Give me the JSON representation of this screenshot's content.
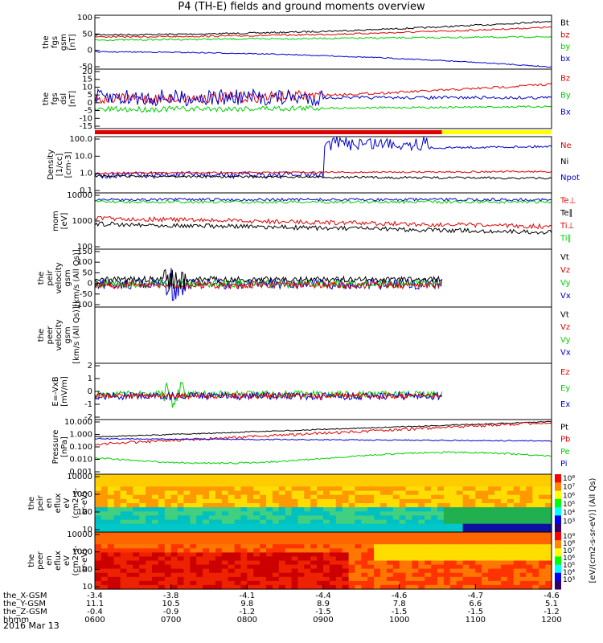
{
  "title": "P4 (TH-E) fields and ground moments overview",
  "date_label": "2016 Mar 13",
  "colors": {
    "black": "#000000",
    "red": "#e00000",
    "green": "#00d000",
    "blue": "#0000d0",
    "yellow": "#ffff00"
  },
  "x_axis": {
    "row_labels": [
      "the_X-GSM",
      "the_Y-GSM",
      "the_Z-GSM",
      "hhmm"
    ],
    "ticks": [
      {
        "values": [
          "-3.4",
          "11.1",
          "-0.4",
          "0600"
        ]
      },
      {
        "values": [
          "-3.8",
          "10.5",
          "-0.9",
          "0700"
        ]
      },
      {
        "values": [
          "-4.1",
          "9.8",
          "-1.2",
          "0800"
        ]
      },
      {
        "values": [
          "-4.4",
          "8.9",
          "-1.5",
          "0900"
        ]
      },
      {
        "values": [
          "-4.6",
          "7.8",
          "-1.5",
          "1000"
        ]
      },
      {
        "values": [
          "-4.7",
          "6.6",
          "-1.5",
          "1100"
        ]
      },
      {
        "values": [
          "-4.6",
          "5.1",
          "-1.2",
          "1200"
        ]
      }
    ]
  },
  "chart_data": [
    {
      "type": "line",
      "ylabel_lines": [
        "the",
        "fgs",
        "gsm",
        "[nT]"
      ],
      "yticks": [
        "100",
        "50",
        "0",
        "-50"
      ],
      "ylim": [
        -50,
        100
      ],
      "series": [
        {
          "name": "Bt",
          "color": "black"
        },
        {
          "name": "bz",
          "color": "red"
        },
        {
          "name": "by",
          "color": "green"
        },
        {
          "name": "bx",
          "color": "blue"
        }
      ]
    },
    {
      "type": "line",
      "ylabel_lines": [
        "the",
        "fgs",
        "dsl",
        "[nT]"
      ],
      "yticks": [
        "20",
        "15",
        "10",
        "5",
        "0",
        "-5",
        "-10",
        "-15"
      ],
      "ylim": [
        -20,
        20
      ],
      "series": [
        {
          "name": "Bz",
          "color": "red"
        },
        {
          "name": "By",
          "color": "green"
        },
        {
          "name": "Bx",
          "color": "blue"
        }
      ]
    },
    {
      "type": "line",
      "ylabel_lines": [
        "Density",
        "[1/cc]",
        "[cm-3]"
      ],
      "yticks": [
        "100.0",
        "10.0",
        "1.0",
        "0.1"
      ],
      "log": true,
      "series": [
        {
          "name": "Ne",
          "color": "red"
        },
        {
          "name": "Ni",
          "color": "black"
        },
        {
          "name": "Npot",
          "color": "blue"
        }
      ]
    },
    {
      "type": "line",
      "ylabel_lines": [
        "mom",
        "[eV]"
      ],
      "yticks": [
        "10000",
        "1000",
        "100"
      ],
      "log": true,
      "series": [
        {
          "name": "Te⊥",
          "color": "red"
        },
        {
          "name": "Te∥",
          "color": "black"
        },
        {
          "name": "Ti⊥",
          "color": "red"
        },
        {
          "name": "Ti∥",
          "color": "green"
        }
      ]
    },
    {
      "type": "line",
      "ylabel_lines": [
        "the",
        "peir",
        "velocity",
        "gsm",
        "[km/s (All Qs)]"
      ],
      "yticks": [
        "150",
        "100",
        "50",
        "0",
        "-50",
        "-100"
      ],
      "ylim": [
        -100,
        150
      ],
      "series": [
        {
          "name": "Vt",
          "color": "black"
        },
        {
          "name": "Vz",
          "color": "red"
        },
        {
          "name": "Vy",
          "color": "green"
        },
        {
          "name": "Vx",
          "color": "blue"
        }
      ]
    },
    {
      "type": "line",
      "ylabel_lines": [
        "the",
        "peer",
        "velocity",
        "gsm",
        "[km/s (All Qs)]"
      ],
      "yticks": [],
      "series": [
        {
          "name": "Vt",
          "color": "black"
        },
        {
          "name": "Vz",
          "color": "red"
        },
        {
          "name": "Vy",
          "color": "green"
        },
        {
          "name": "Vx",
          "color": "blue"
        }
      ]
    },
    {
      "type": "line",
      "ylabel_lines": [
        "E=-VxB",
        "[mV/m]"
      ],
      "yticks": [
        "2",
        "1",
        "0",
        "-1",
        "-2"
      ],
      "ylim": [
        -2,
        2
      ],
      "series": [
        {
          "name": "Ez",
          "color": "red"
        },
        {
          "name": "Ey",
          "color": "green"
        },
        {
          "name": "Ex",
          "color": "blue"
        }
      ]
    },
    {
      "type": "line",
      "ylabel_lines": [
        "Pressure",
        "[nPa]"
      ],
      "yticks": [
        "10.000",
        "1.000",
        "0.100",
        "0.010",
        "0.001"
      ],
      "log": true,
      "series": [
        {
          "name": "Pt",
          "color": "black"
        },
        {
          "name": "Pb",
          "color": "red"
        },
        {
          "name": "Pe",
          "color": "green"
        },
        {
          "name": "Pi",
          "color": "blue"
        }
      ]
    },
    {
      "type": "heatmap",
      "ylabel_lines": [
        "the",
        "peir",
        "en",
        "eflux",
        "eV",
        "(cm2-s-",
        "sr-eV)"
      ],
      "yticks": [
        "10000",
        "1000",
        "100",
        "10"
      ],
      "colorbar_ticks": [
        "10⁸",
        "10⁷",
        "10⁶",
        "10⁵",
        "10⁴",
        "10³"
      ]
    },
    {
      "type": "heatmap",
      "ylabel_lines": [
        "the",
        "peer",
        "en",
        "eflux",
        "eV",
        "(cm2-s-",
        "sr-eV)"
      ],
      "yticks": [
        "10000",
        "1000",
        "100",
        "10"
      ],
      "colorbar_ticks": [
        "10⁹",
        "10⁸",
        "10⁷",
        "10⁶",
        "10⁵",
        "10⁴",
        "10³"
      ]
    }
  ],
  "colorbar_label": "[eV/(cm2-s-sr-eV)] (All Qs)"
}
